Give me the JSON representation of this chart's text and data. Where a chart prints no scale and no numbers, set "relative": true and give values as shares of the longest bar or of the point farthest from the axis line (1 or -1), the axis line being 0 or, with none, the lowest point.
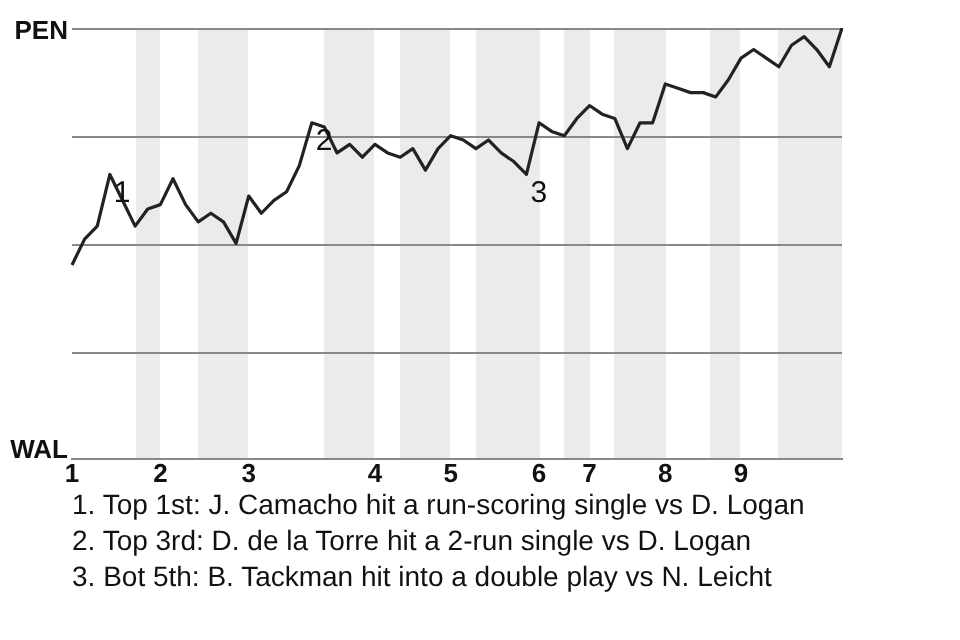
{
  "chart_data": {
    "type": "line",
    "color": "#222222",
    "relative": true,
    "categories": [
      "1",
      null,
      null,
      null,
      null,
      null,
      null,
      "2",
      null,
      null,
      null,
      null,
      null,
      null,
      "3",
      null,
      null,
      null,
      null,
      null,
      null,
      null,
      null,
      null,
      "4",
      null,
      null,
      null,
      null,
      null,
      "5",
      null,
      null,
      null,
      null,
      null,
      null,
      "6",
      null,
      null,
      null,
      "7",
      null,
      null,
      null,
      null,
      null,
      "8",
      null,
      null,
      null,
      null,
      null,
      "9",
      null,
      null,
      null,
      null,
      null,
      null,
      null,
      null
    ],
    "values": [
      0.45,
      0.51,
      0.54,
      0.66,
      0.6,
      0.54,
      0.58,
      0.59,
      0.65,
      0.59,
      0.55,
      0.57,
      0.55,
      0.5,
      0.61,
      0.57,
      0.6,
      0.62,
      0.68,
      0.78,
      0.77,
      0.71,
      0.73,
      0.7,
      0.73,
      0.71,
      0.7,
      0.72,
      0.67,
      0.72,
      0.75,
      0.74,
      0.72,
      0.74,
      0.71,
      0.69,
      0.66,
      0.78,
      0.76,
      0.75,
      0.79,
      0.82,
      0.8,
      0.79,
      0.72,
      0.78,
      0.78,
      0.87,
      0.86,
      0.85,
      0.85,
      0.84,
      0.88,
      0.93,
      0.95,
      0.93,
      0.91,
      0.96,
      0.98,
      0.95,
      0.91,
      1
    ],
    "marker": "none",
    "line_style": "solid",
    "legend": false,
    "ref_lines": [
      {
        "axis": "y",
        "value": 0.25,
        "color": "#888888"
      },
      {
        "axis": "y",
        "value": 0.5,
        "color": "#888888"
      },
      {
        "axis": "y",
        "value": 0.75,
        "color": "#888888"
      },
      {
        "axis": "y",
        "value": 1,
        "color": "#888888"
      }
    ],
    "annotations": [
      "PEN",
      "WAL",
      "1",
      "2",
      "3",
      "1. Top 1st: J. Camacho hit a run-scoring single vs D. Logan",
      "2. Top 3rd: D. de la Torre hit a 2-run single vs D. Logan",
      "3. Bot 5th: B. Tackman hit into a double play vs N. Leicht"
    ]
  }
}
